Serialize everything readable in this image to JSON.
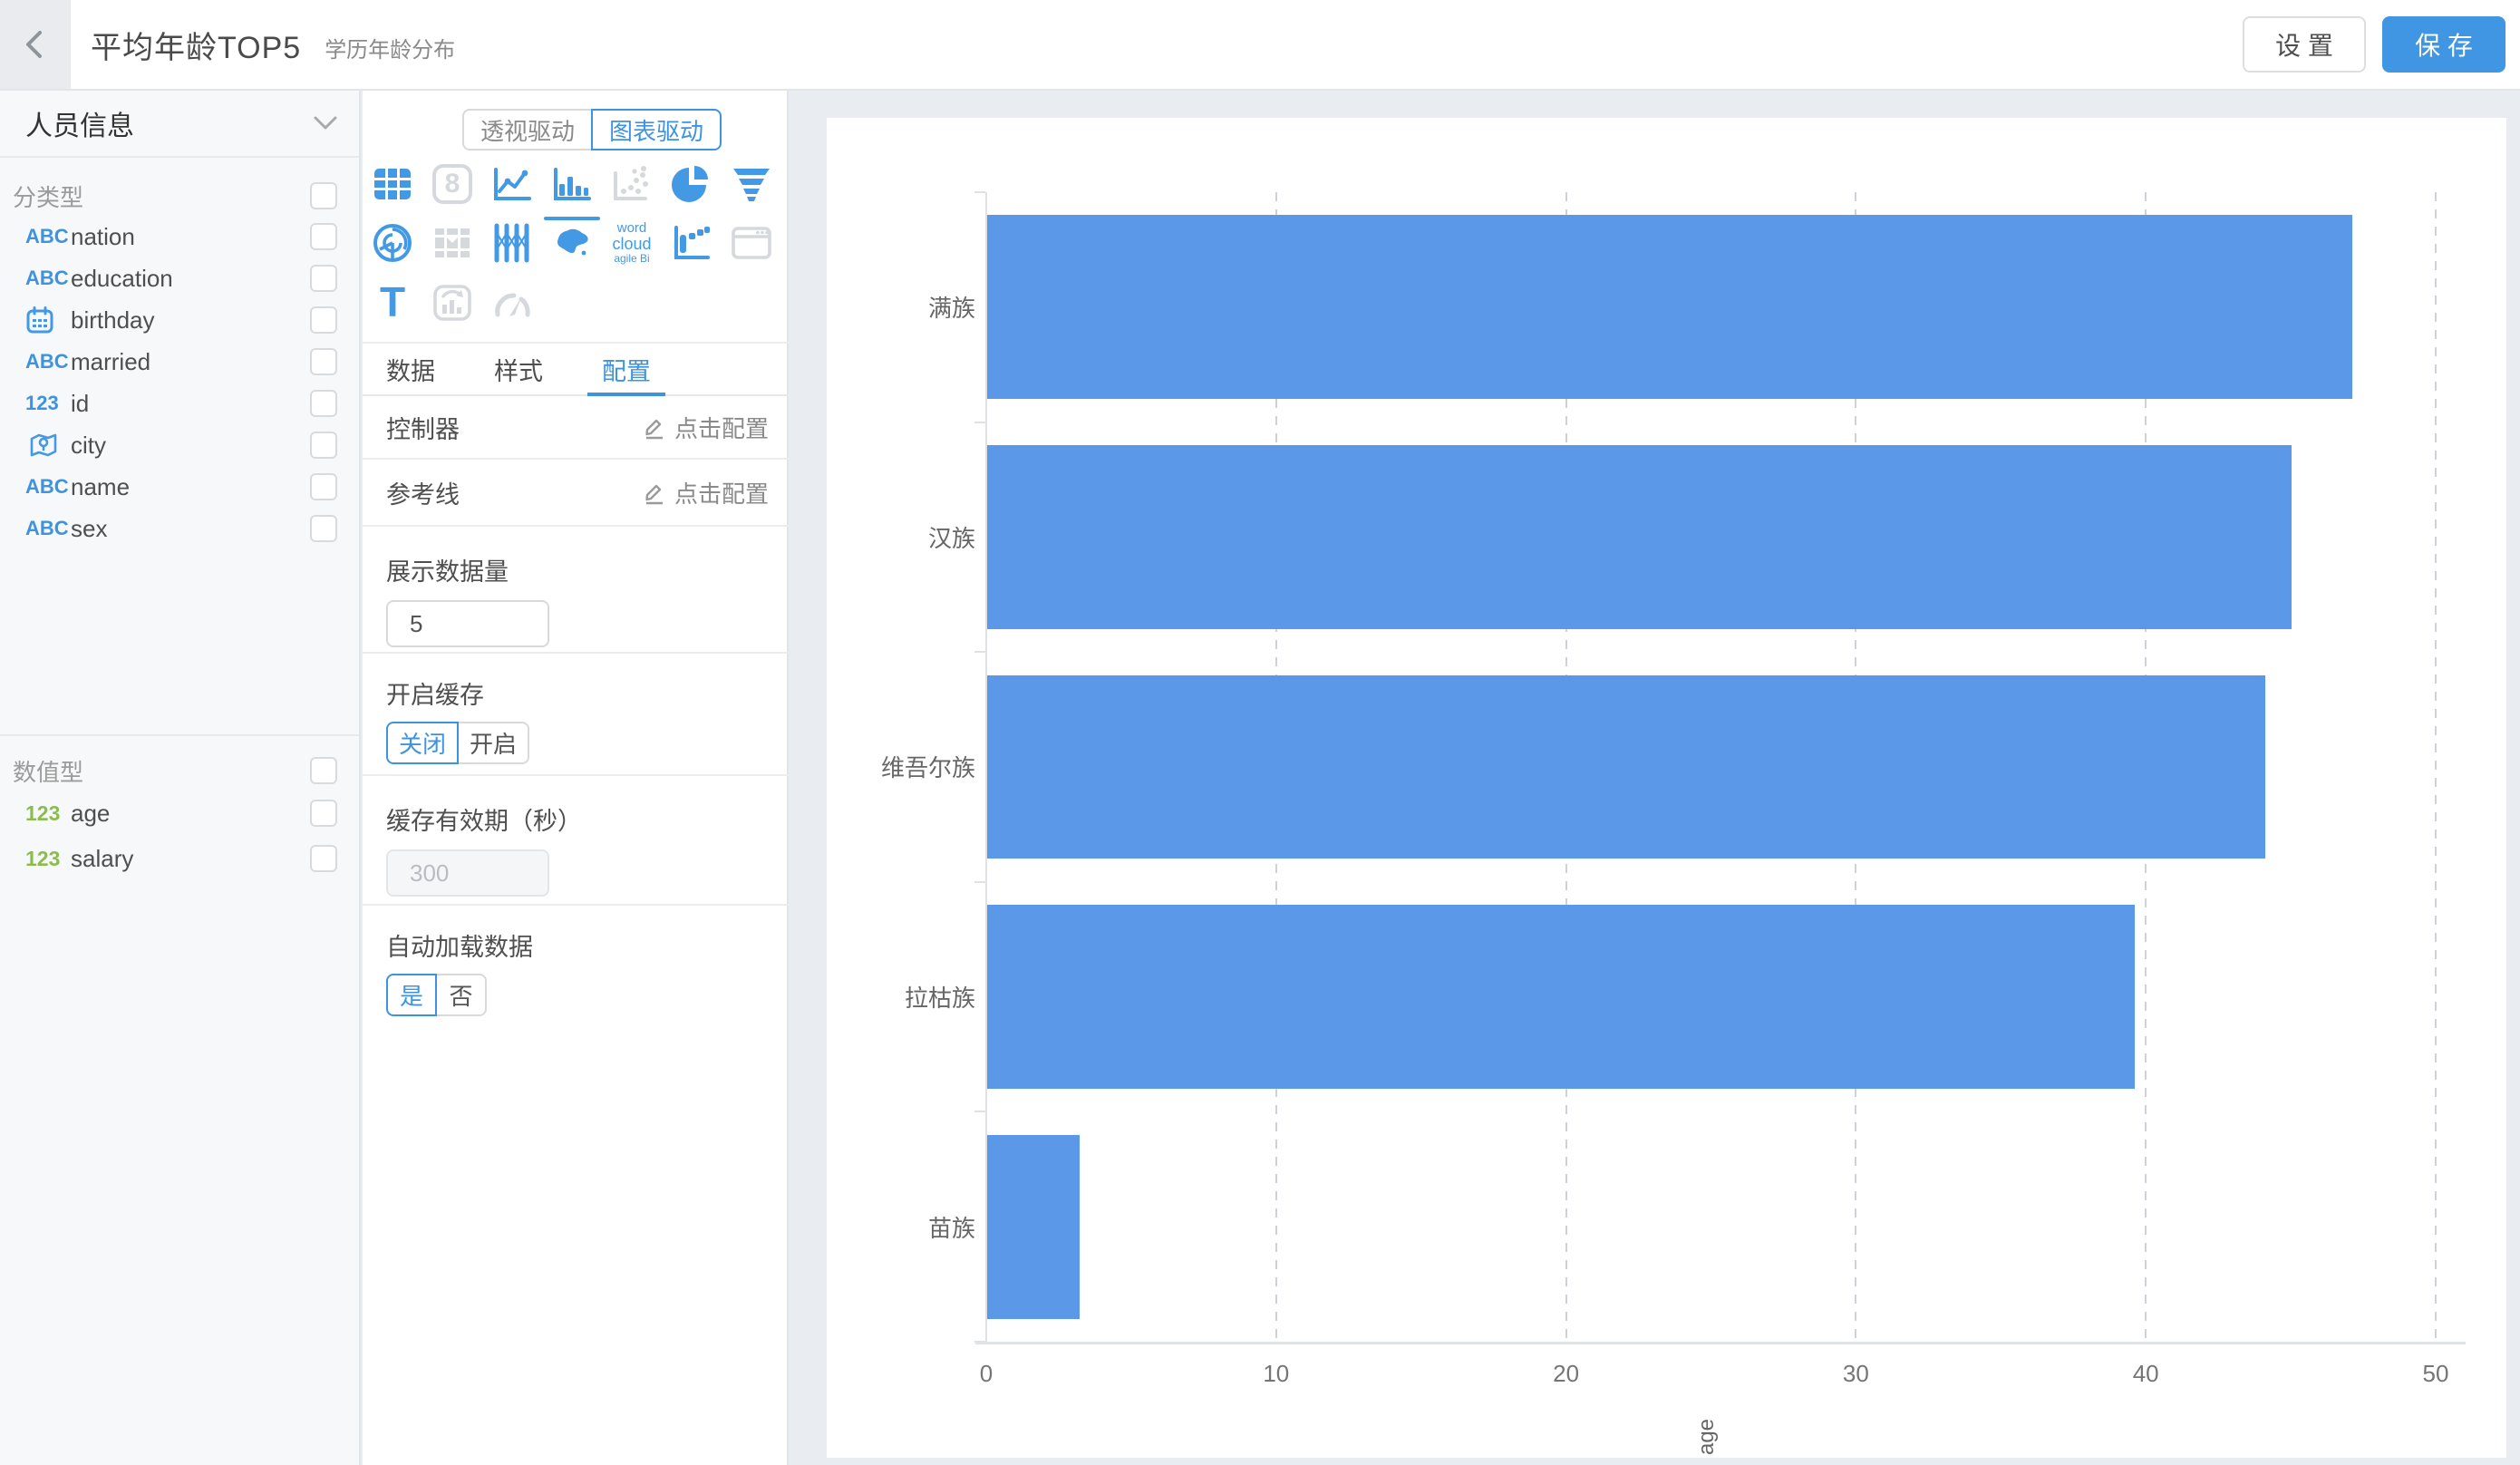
{
  "header": {
    "title": "平均年龄TOP5",
    "subtitle": "学历年龄分布",
    "settings_label": "设 置",
    "save_label": "保 存"
  },
  "sidebar": {
    "dataset_name": "人员信息",
    "type_labels": {
      "string": "ABC",
      "number": "123"
    },
    "groups": [
      {
        "label": "分类型",
        "fields": [
          {
            "name": "nation",
            "type": "string"
          },
          {
            "name": "education",
            "type": "string"
          },
          {
            "name": "birthday",
            "type": "date"
          },
          {
            "name": "married",
            "type": "string"
          },
          {
            "name": "id",
            "type": "number"
          },
          {
            "name": "city",
            "type": "geo"
          },
          {
            "name": "name",
            "type": "string"
          },
          {
            "name": "sex",
            "type": "string"
          }
        ]
      },
      {
        "label": "数值型",
        "fields": [
          {
            "name": "age",
            "type": "number"
          },
          {
            "name": "salary",
            "type": "number"
          }
        ]
      }
    ]
  },
  "panel": {
    "mode_tabs": [
      {
        "label": "透视驱动",
        "active": false
      },
      {
        "label": "图表驱动",
        "active": true
      }
    ],
    "icon_glyphs": {
      "kpi": "8",
      "text": "T",
      "wordcloud": [
        "word",
        "cloud",
        "agile Bi"
      ]
    },
    "tabs": [
      "数据",
      "样式",
      "配置"
    ],
    "active_tab": "配置",
    "controller": {
      "label": "控制器",
      "action": "点击配置"
    },
    "reference_line": {
      "label": "参考线",
      "action": "点击配置"
    },
    "display_count": {
      "label": "展示数据量",
      "value": "5"
    },
    "cache": {
      "label": "开启缓存",
      "options": [
        "关闭",
        "开启"
      ],
      "selected": "关闭"
    },
    "cache_ttl": {
      "label": "缓存有效期（秒）",
      "value": "300",
      "disabled": true
    },
    "autoload": {
      "label": "自动加载数据",
      "options": [
        "是",
        "否"
      ],
      "selected": "是"
    }
  },
  "chart_data": {
    "type": "bar",
    "orientation": "horizontal",
    "title": "",
    "categories": [
      "满族",
      "汉族",
      "维吾尔族",
      "拉枯族",
      "苗族"
    ],
    "values": [
      47.1,
      45.0,
      44.1,
      39.6,
      3.2
    ],
    "series_name": "age",
    "xlabel": "age",
    "ylabel": "",
    "xlim": [
      0,
      50
    ],
    "xticks": [
      0,
      10,
      20,
      30,
      40,
      50
    ],
    "grid": "dashed-vertical",
    "legend": "none",
    "bar_color": "#5C98E8"
  },
  "colors": {
    "accent": "#3E93E0",
    "icon_blue": "#4499E4",
    "icon_grey": "#D5D8DC",
    "bar": "#5C98E8",
    "save_button": "#4196E3",
    "page_bg": "#E9EDF1"
  }
}
